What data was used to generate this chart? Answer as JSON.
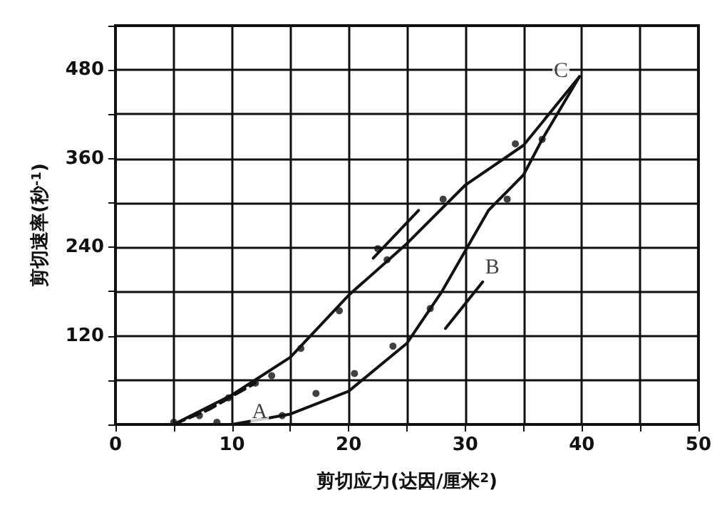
{
  "chart_data": {
    "type": "scatter",
    "xlabel": "剪切应力(达因/厘米$^{2}$)",
    "ylabel": "剪切速率(秒$^{-1}$)",
    "xlim": [
      0,
      50
    ],
    "xticks": [
      0,
      {
        "value": 5,
        "label": null
      },
      10,
      {
        "value": 15,
        "label": null
      },
      20,
      {
        "value": 25,
        "label": null
      },
      30,
      {
        "value": 35,
        "label": null
      },
      40,
      {
        "value": 45,
        "label": null
      },
      50
    ],
    "ylim": [
      0,
      540
    ],
    "yticks": [
      {
        "value": 0,
        "label": null
      },
      {
        "value": 60,
        "label": null
      },
      120,
      {
        "value": 180,
        "label": null
      },
      240,
      {
        "value": 300,
        "label": null
      },
      360,
      {
        "value": 420,
        "label": null
      },
      480,
      {
        "value": 540,
        "label": null
      }
    ],
    "grid": true,
    "series": [
      {
        "type": "line",
        "color": "#111111",
        "marker": "none",
        "line_style": "solid",
        "x": [
          5,
          10,
          15,
          20,
          25,
          30,
          35,
          39.8
        ],
        "values": [
          0,
          40,
          91,
          175,
          245,
          324,
          378,
          471
        ]
      },
      {
        "type": "line",
        "color": "#111111",
        "marker": "none",
        "line_style": "solid",
        "x": [
          10,
          15,
          20,
          25,
          28,
          30,
          32,
          35,
          36.6,
          39.8
        ],
        "values": [
          0,
          14,
          45,
          110,
          180,
          235,
          290,
          338,
          386,
          471
        ]
      },
      {
        "type": "line",
        "color": "#111111",
        "marker": "none",
        "line_style": "dashed",
        "x": [
          5,
          8,
          12
        ],
        "values": [
          0,
          20,
          56
        ]
      },
      {
        "type": "line",
        "color": "#111111",
        "marker": "none",
        "line_style": "solid",
        "x": [
          22.1,
          26.0
        ],
        "values": [
          225,
          290
        ]
      },
      {
        "type": "line",
        "color": "#111111",
        "marker": "none",
        "line_style": "solid",
        "x": [
          28.3,
          31.5
        ],
        "values": [
          130,
          193
        ]
      },
      {
        "color": "#111111",
        "marker": "circle",
        "x": [
          5.0,
          7.2,
          9.7,
          12.0,
          13.4,
          15.9,
          19.2,
          22.5,
          23.3,
          28.1,
          34.3
        ],
        "values": [
          3,
          12,
          36,
          56,
          66,
          103,
          154,
          238,
          223,
          305,
          380
        ]
      },
      {
        "color": "#111111",
        "marker": "circle",
        "x": [
          8.7,
          14.3,
          17.2,
          20.5,
          23.8,
          27.0,
          33.6,
          36.6
        ],
        "values": [
          3,
          12,
          42,
          69,
          106,
          157,
          305,
          386
        ]
      }
    ],
    "annotations": [
      {
        "text": "A",
        "x": 10,
        "y": 40
      },
      {
        "text": "B",
        "x": 30,
        "y": 235
      },
      {
        "text": "C",
        "x": 39.8,
        "y": 471
      }
    ]
  }
}
